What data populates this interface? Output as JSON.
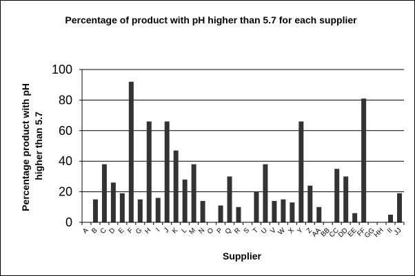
{
  "chart_data": {
    "type": "bar",
    "title": "Percentage of product with pH higher than 5.7 for each supplier",
    "xlabel": "Supplier",
    "ylabel_lines": [
      "Percentage product with pH",
      "higher than 5.7"
    ],
    "ylim": [
      0,
      100
    ],
    "yticks": [
      0,
      20,
      40,
      60,
      80,
      100
    ],
    "grid": "horizontal",
    "bar_color": "#333333",
    "categories": [
      "A",
      "B",
      "C",
      "D",
      "E",
      "F",
      "G",
      "H",
      "I",
      "J",
      "K",
      "L",
      "M",
      "N",
      "O",
      "P",
      "Q",
      "R",
      "S",
      "T",
      "U",
      "V",
      "W",
      "X",
      "Y",
      "Z",
      "AA",
      "BB",
      "CC",
      "DD",
      "EE",
      "FF",
      "GG",
      "HH",
      "II",
      "JJ"
    ],
    "values": [
      0,
      15,
      38,
      26,
      19,
      92,
      15,
      66,
      16,
      66,
      47,
      28,
      38,
      14,
      0,
      11,
      30,
      10,
      0,
      20,
      38,
      14,
      15,
      13,
      66,
      24,
      10,
      0,
      35,
      30,
      6,
      81,
      0,
      0,
      5,
      19
    ]
  }
}
